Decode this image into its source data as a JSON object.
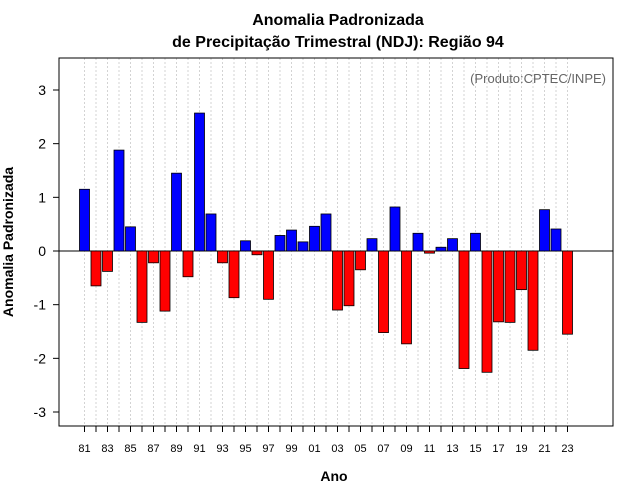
{
  "chart_data": {
    "type": "bar",
    "title": "Anomalia Padronizada",
    "subtitle": "de Precipitação Trimestral (NDJ): Região 94",
    "xlabel": "Ano",
    "ylabel": "Anomalia Padronizada",
    "credit": "(Produto:CPTEC/INPE)",
    "ylim": [
      -3.3,
      3.6
    ],
    "yticks": [
      -3,
      -2,
      -1,
      0,
      1,
      2,
      3
    ],
    "ytick_labels": [
      "-3",
      "-2",
      "-1",
      "0",
      "1",
      "2",
      "3"
    ],
    "xtick_labels": [
      "81",
      "83",
      "85",
      "87",
      "89",
      "91",
      "93",
      "95",
      "97",
      "99",
      "01",
      "03",
      "05",
      "07",
      "09",
      "11",
      "13",
      "15",
      "17",
      "19",
      "21",
      "23"
    ],
    "categories": [
      "1981",
      "1982",
      "1983",
      "1984",
      "1985",
      "1986",
      "1987",
      "1988",
      "1989",
      "1990",
      "1991",
      "1992",
      "1993",
      "1994",
      "1995",
      "1996",
      "1997",
      "1998",
      "1999",
      "2000",
      "2001",
      "2002",
      "2003",
      "2004",
      "2005",
      "2006",
      "2007",
      "2008",
      "2009",
      "2010",
      "2011",
      "2012",
      "2013",
      "2014",
      "2015",
      "2016",
      "2017",
      "2018",
      "2019",
      "2020",
      "2021",
      "2022",
      "2023"
    ],
    "values": [
      1.15,
      -0.65,
      -0.38,
      1.88,
      0.45,
      -1.33,
      -0.22,
      -1.12,
      1.45,
      -0.48,
      2.57,
      0.69,
      -0.22,
      -0.87,
      0.19,
      -0.07,
      -0.9,
      0.29,
      0.39,
      0.17,
      0.46,
      0.69,
      -1.1,
      -1.02,
      -0.35,
      0.23,
      -1.52,
      0.82,
      -1.73,
      0.33,
      -0.04,
      0.07,
      0.23,
      -2.19,
      0.33,
      -2.26,
      -1.32,
      -1.33,
      -0.72,
      -1.85,
      0.77,
      0.41,
      -1.55
    ],
    "colors": {
      "positive": "#0000ff",
      "negative": "#ff0000",
      "grid": "#d3d3d3",
      "credit": "#666666"
    },
    "grid": true
  }
}
